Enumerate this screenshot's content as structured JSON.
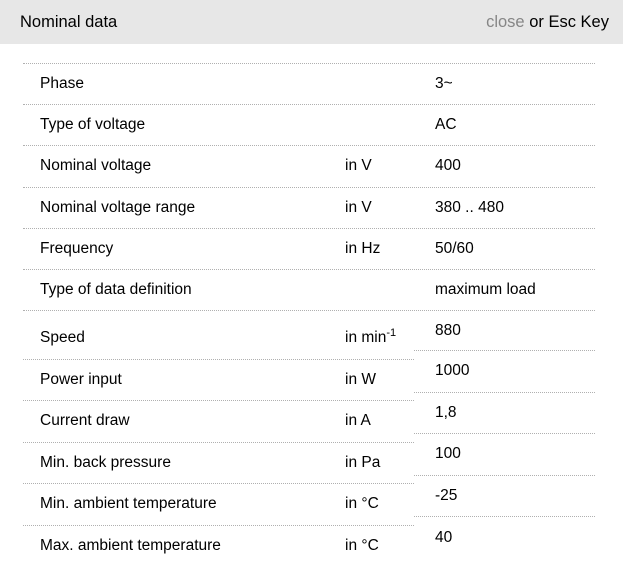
{
  "header": {
    "title": "Nominal data",
    "close_label": "close",
    "close_suffix": " or Esc Key"
  },
  "colors": {
    "header_bg": "#e7e7e7",
    "close_gray": "#868686",
    "separator_dotted": "#b0b0b0",
    "text": "#000000"
  },
  "table": {
    "rows": [
      {
        "label": "Phase",
        "unit": "",
        "value": "3~"
      },
      {
        "label": "Type of voltage",
        "unit": "",
        "value": "AC"
      },
      {
        "label": "Nominal voltage",
        "unit": "in V",
        "value": "400"
      },
      {
        "label": "Nominal voltage range",
        "unit": "in V",
        "value": "380 .. 480"
      },
      {
        "label": "Frequency",
        "unit": "in Hz",
        "value": "50/60"
      },
      {
        "label": "Type of data definition",
        "unit": "",
        "value": "maximum load"
      },
      {
        "label": "Speed",
        "unit": "in min",
        "unit_sup": "-1",
        "value": "880"
      },
      {
        "label": "Power input",
        "unit": "in W",
        "value": "1000"
      },
      {
        "label": "Current draw",
        "unit": "in A",
        "value": "1,8"
      },
      {
        "label": "Min. back pressure",
        "unit": "in Pa",
        "value": "100"
      },
      {
        "label": "Min. ambient temperature",
        "unit": "in °C",
        "value": "-25"
      },
      {
        "label": "Max. ambient temperature",
        "unit": "in °C",
        "value": "40"
      }
    ]
  }
}
